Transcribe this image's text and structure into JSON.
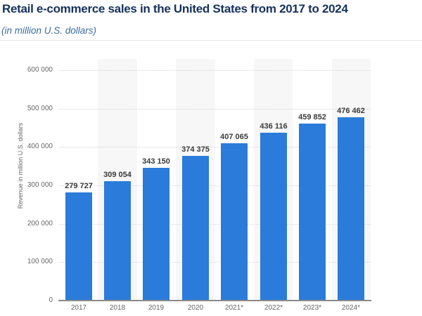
{
  "page": {
    "title": "Retail e-commerce sales in the United States from 2017 to 2024",
    "subtitle": "(in million U.S. dollars)"
  },
  "colors": {
    "bar": "#2b7bda",
    "title_text": "#16325c",
    "subtitle_text": "#3d6d9e",
    "band": "#f7f7f7",
    "gridline": "#d4d4d4",
    "axis_line": "#8a8a8a",
    "value_label": "#3a3a3a",
    "tick_label": "#666666"
  },
  "chart_data": {
    "type": "bar",
    "title": "Retail e-commerce sales in the United States from 2017 to 2024",
    "subtitle": "(in million U.S. dollars)",
    "categories": [
      "2017",
      "2018",
      "2019",
      "2020",
      "2021*",
      "2022*",
      "2023*",
      "2024*"
    ],
    "values": [
      279727,
      309054,
      343150,
      374375,
      407065,
      436116,
      459852,
      476462
    ],
    "value_labels": [
      "279 727",
      "309 054",
      "343 150",
      "374 375",
      "407 065",
      "436 116",
      "459 852",
      "476 462"
    ],
    "xlabel": "",
    "ylabel": "Revenue in million U.S. dollars",
    "ylim": [
      0,
      600000
    ],
    "ytick_interval": 100000,
    "ytick_labels": [
      "0",
      "100 000",
      "200 000",
      "300 000",
      "400 000",
      "500 000",
      "600 000"
    ],
    "grid": true,
    "gridline_style": "dotted",
    "legend": false,
    "bar_color": "#2b7bda",
    "alternating_column_bands": true
  }
}
